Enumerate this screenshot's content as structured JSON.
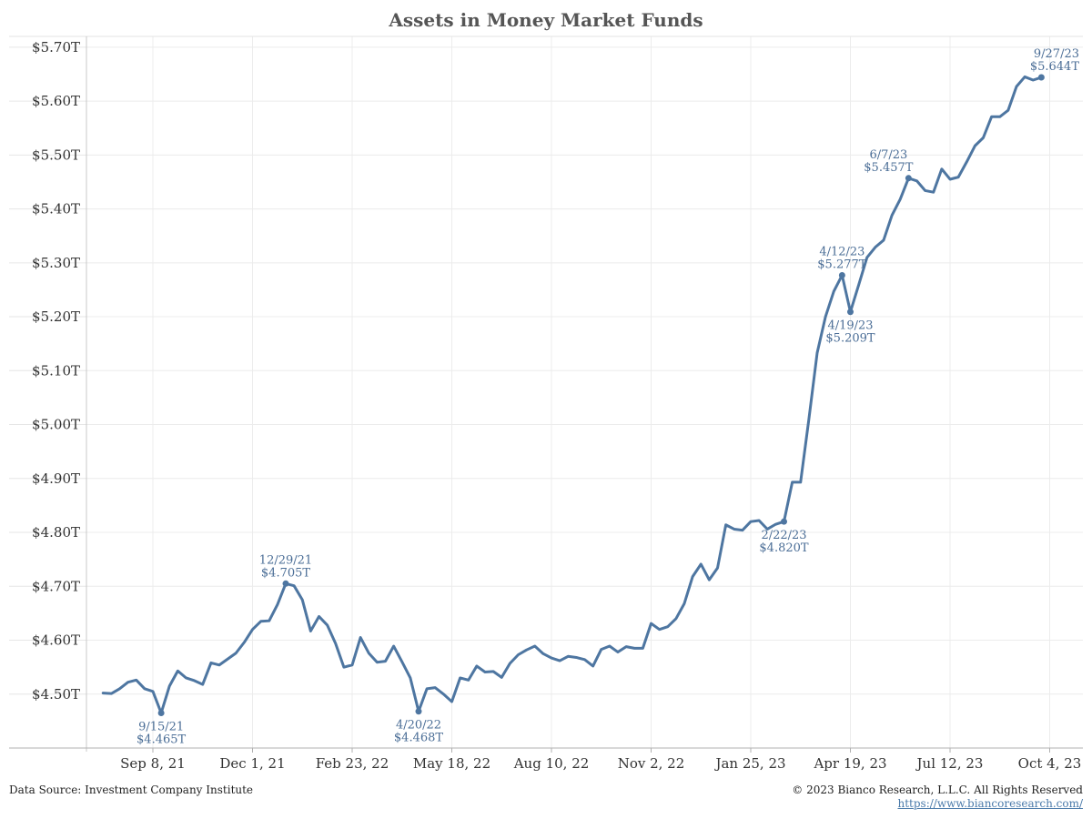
{
  "chart_data": {
    "type": "line",
    "title": "Assets in Money Market Funds",
    "xlabel": "",
    "ylabel": "",
    "ylim": [
      4.4,
      5.72
    ],
    "xlim": [
      "2021-07-14",
      "2023-11-01"
    ],
    "grid": true,
    "y_ticks": [
      {
        "value": 4.5,
        "label": "$4.50T"
      },
      {
        "value": 4.6,
        "label": "$4.60T"
      },
      {
        "value": 4.7,
        "label": "$4.70T"
      },
      {
        "value": 4.8,
        "label": "$4.80T"
      },
      {
        "value": 4.9,
        "label": "$4.90T"
      },
      {
        "value": 5.0,
        "label": "$5.00T"
      },
      {
        "value": 5.1,
        "label": "$5.10T"
      },
      {
        "value": 5.2,
        "label": "$5.20T"
      },
      {
        "value": 5.3,
        "label": "$5.30T"
      },
      {
        "value": 5.4,
        "label": "$5.40T"
      },
      {
        "value": 5.5,
        "label": "$5.50T"
      },
      {
        "value": 5.6,
        "label": "$5.60T"
      },
      {
        "value": 5.7,
        "label": "$5.70T"
      }
    ],
    "x_ticks": [
      {
        "date": "2021-09-08",
        "label": "Sep 8, 21"
      },
      {
        "date": "2021-12-01",
        "label": "Dec 1, 21"
      },
      {
        "date": "2022-02-23",
        "label": "Feb 23, 22"
      },
      {
        "date": "2022-05-18",
        "label": "May 18, 22"
      },
      {
        "date": "2022-08-10",
        "label": "Aug 10, 22"
      },
      {
        "date": "2022-11-02",
        "label": "Nov 2, 22"
      },
      {
        "date": "2023-01-25",
        "label": "Jan 25, 23"
      },
      {
        "date": "2023-04-19",
        "label": "Apr 19, 23"
      },
      {
        "date": "2023-07-12",
        "label": "Jul 12, 23"
      },
      {
        "date": "2023-10-04",
        "label": "Oct 4, 23"
      }
    ],
    "series": [
      {
        "color": "#4e76a1",
        "points": [
          [
            "2021-07-28",
            4.502
          ],
          [
            "2021-08-04",
            4.501
          ],
          [
            "2021-08-11",
            4.51
          ],
          [
            "2021-08-18",
            4.522
          ],
          [
            "2021-08-25",
            4.526
          ],
          [
            "2021-09-01",
            4.51
          ],
          [
            "2021-09-08",
            4.505
          ],
          [
            "2021-09-15",
            4.465
          ],
          [
            "2021-09-22",
            4.515
          ],
          [
            "2021-09-29",
            4.543
          ],
          [
            "2021-10-06",
            4.53
          ],
          [
            "2021-10-13",
            4.525
          ],
          [
            "2021-10-20",
            4.518
          ],
          [
            "2021-10-27",
            4.558
          ],
          [
            "2021-11-03",
            4.554
          ],
          [
            "2021-11-10",
            4.565
          ],
          [
            "2021-11-17",
            4.576
          ],
          [
            "2021-11-24",
            4.596
          ],
          [
            "2021-12-01",
            4.62
          ],
          [
            "2021-12-08",
            4.635
          ],
          [
            "2021-12-15",
            4.636
          ],
          [
            "2021-12-22",
            4.666
          ],
          [
            "2021-12-29",
            4.705
          ],
          [
            "2022-01-05",
            4.701
          ],
          [
            "2022-01-12",
            4.675
          ],
          [
            "2022-01-19",
            4.617
          ],
          [
            "2022-01-26",
            4.644
          ],
          [
            "2022-02-02",
            4.628
          ],
          [
            "2022-02-09",
            4.594
          ],
          [
            "2022-02-16",
            4.55
          ],
          [
            "2022-02-23",
            4.554
          ],
          [
            "2022-03-02",
            4.605
          ],
          [
            "2022-03-09",
            4.576
          ],
          [
            "2022-03-16",
            4.559
          ],
          [
            "2022-03-23",
            4.561
          ],
          [
            "2022-03-30",
            4.589
          ],
          [
            "2022-04-06",
            4.56
          ],
          [
            "2022-04-13",
            4.53
          ],
          [
            "2022-04-20",
            4.468
          ],
          [
            "2022-04-27",
            4.51
          ],
          [
            "2022-05-04",
            4.512
          ],
          [
            "2022-05-11",
            4.5
          ],
          [
            "2022-05-18",
            4.486
          ],
          [
            "2022-05-25",
            4.53
          ],
          [
            "2022-06-01",
            4.526
          ],
          [
            "2022-06-08",
            4.552
          ],
          [
            "2022-06-15",
            4.541
          ],
          [
            "2022-06-22",
            4.542
          ],
          [
            "2022-06-29",
            4.531
          ],
          [
            "2022-07-06",
            4.557
          ],
          [
            "2022-07-13",
            4.573
          ],
          [
            "2022-07-20",
            4.582
          ],
          [
            "2022-07-27",
            4.589
          ],
          [
            "2022-08-03",
            4.575
          ],
          [
            "2022-08-10",
            4.567
          ],
          [
            "2022-08-17",
            4.562
          ],
          [
            "2022-08-24",
            4.57
          ],
          [
            "2022-08-31",
            4.568
          ],
          [
            "2022-09-07",
            4.564
          ],
          [
            "2022-09-14",
            4.552
          ],
          [
            "2022-09-21",
            4.583
          ],
          [
            "2022-09-28",
            4.589
          ],
          [
            "2022-10-05",
            4.578
          ],
          [
            "2022-10-12",
            4.588
          ],
          [
            "2022-10-19",
            4.585
          ],
          [
            "2022-10-26",
            4.585
          ],
          [
            "2022-11-02",
            4.631
          ],
          [
            "2022-11-09",
            4.62
          ],
          [
            "2022-11-16",
            4.625
          ],
          [
            "2022-11-23",
            4.64
          ],
          [
            "2022-11-30",
            4.668
          ],
          [
            "2022-12-07",
            4.718
          ],
          [
            "2022-12-14",
            4.741
          ],
          [
            "2022-12-21",
            4.712
          ],
          [
            "2022-12-28",
            4.734
          ],
          [
            "2023-01-04",
            4.814
          ],
          [
            "2023-01-11",
            4.806
          ],
          [
            "2023-01-18",
            4.804
          ],
          [
            "2023-01-25",
            4.82
          ],
          [
            "2023-02-01",
            4.822
          ],
          [
            "2023-02-08",
            4.806
          ],
          [
            "2023-02-15",
            4.815
          ],
          [
            "2023-02-22",
            4.82
          ],
          [
            "2023-03-01",
            4.893
          ],
          [
            "2023-03-08",
            4.893
          ],
          [
            "2023-03-15",
            5.01
          ],
          [
            "2023-03-22",
            5.133
          ],
          [
            "2023-03-29",
            5.2
          ],
          [
            "2023-04-05",
            5.247
          ],
          [
            "2023-04-12",
            5.277
          ],
          [
            "2023-04-19",
            5.209
          ],
          [
            "2023-04-26",
            5.259
          ],
          [
            "2023-05-03",
            5.31
          ],
          [
            "2023-05-10",
            5.329
          ],
          [
            "2023-05-17",
            5.342
          ],
          [
            "2023-05-24",
            5.388
          ],
          [
            "2023-05-31",
            5.418
          ],
          [
            "2023-06-07",
            5.457
          ],
          [
            "2023-06-14",
            5.452
          ],
          [
            "2023-06-21",
            5.434
          ],
          [
            "2023-06-28",
            5.431
          ],
          [
            "2023-07-05",
            5.474
          ],
          [
            "2023-07-12",
            5.455
          ],
          [
            "2023-07-19",
            5.459
          ],
          [
            "2023-07-26",
            5.487
          ],
          [
            "2023-08-02",
            5.517
          ],
          [
            "2023-08-09",
            5.532
          ],
          [
            "2023-08-16",
            5.571
          ],
          [
            "2023-08-23",
            5.571
          ],
          [
            "2023-08-30",
            5.583
          ],
          [
            "2023-09-06",
            5.627
          ],
          [
            "2023-09-13",
            5.645
          ],
          [
            "2023-09-20",
            5.639
          ],
          [
            "2023-09-27",
            5.644
          ]
        ]
      }
    ],
    "annotations": [
      {
        "date": "2021-09-15",
        "value": 4.465,
        "label_date": "9/15/21",
        "label_value": "$4.465T",
        "position": "below"
      },
      {
        "date": "2021-12-29",
        "value": 4.705,
        "label_date": "12/29/21",
        "label_value": "$4.705T",
        "position": "above"
      },
      {
        "date": "2022-04-20",
        "value": 4.468,
        "label_date": "4/20/22",
        "label_value": "$4.468T",
        "position": "below"
      },
      {
        "date": "2023-02-22",
        "value": 4.82,
        "label_date": "2/22/23",
        "label_value": "$4.820T",
        "position": "below"
      },
      {
        "date": "2023-04-12",
        "value": 5.277,
        "label_date": "4/12/23",
        "label_value": "$5.277T",
        "position": "above"
      },
      {
        "date": "2023-04-19",
        "value": 5.209,
        "label_date": "4/19/23",
        "label_value": "$5.209T",
        "position": "below"
      },
      {
        "date": "2023-06-07",
        "value": 5.457,
        "label_date": "6/7/23",
        "label_value": "$5.457T",
        "position": "above-left"
      },
      {
        "date": "2023-09-27",
        "value": 5.644,
        "label_date": "9/27/23",
        "label_value": "$5.644T",
        "position": "above-right"
      }
    ]
  },
  "footer": {
    "source": "Data Source: Investment Company Institute",
    "copyright": "© 2023 Bianco Research, L.L.C. All Rights Reserved",
    "url": "https://www.biancoresearch.com/"
  }
}
